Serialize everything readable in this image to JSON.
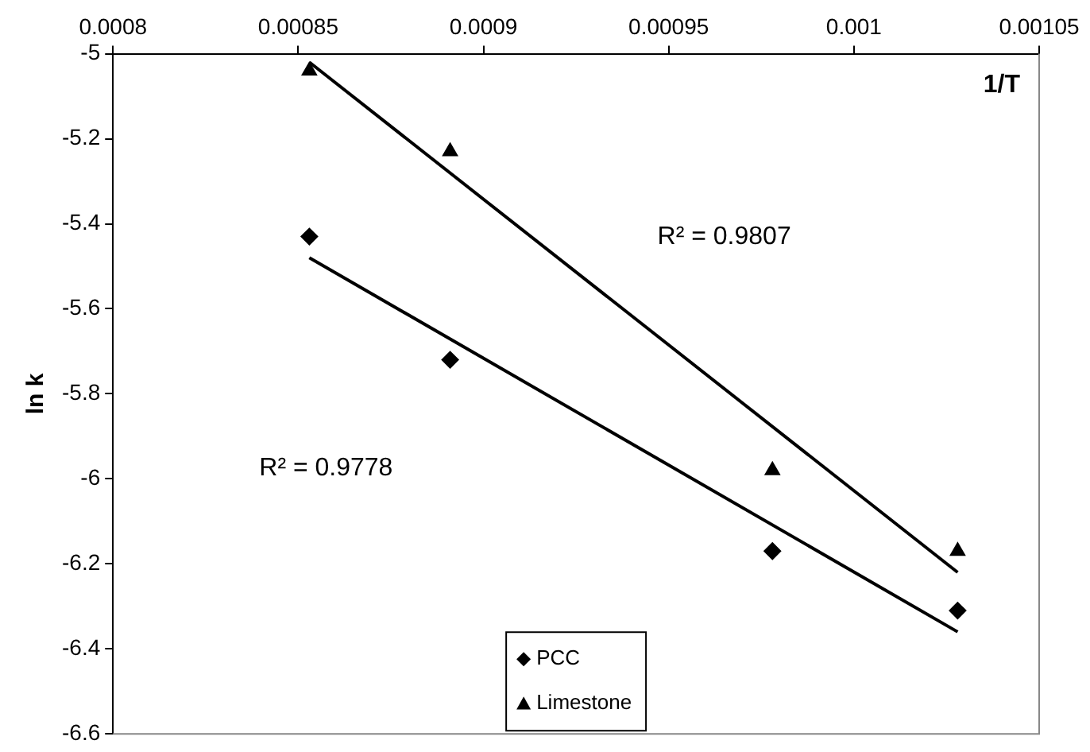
{
  "chart_data": {
    "type": "scatter",
    "xlabel": "1/T",
    "ylabel": "ln k",
    "xlim": [
      0.0008,
      0.00105
    ],
    "xticks": [
      0.0008,
      0.00085,
      0.0009,
      0.00095,
      0.001,
      0.00105
    ],
    "ylim": [
      -6.6,
      -5
    ],
    "yticks": [
      -6.6,
      -6.4,
      -6.2,
      -6,
      -5.8,
      -5.6,
      -5.4,
      -5.2,
      -5
    ],
    "grid": false,
    "legend": "bottom",
    "series": [
      {
        "name": "PCC",
        "color": "#000000",
        "marker": "diamond",
        "x": [
          0.000853,
          0.000891,
          0.000978,
          0.001028
        ],
        "values": [
          -5.43,
          -5.72,
          -6.17,
          -6.31
        ]
      },
      {
        "name": "Limestone",
        "color": "#000000",
        "marker": "triangle",
        "x": [
          0.000853,
          0.000891,
          0.000978,
          0.001028
        ],
        "values": [
          -5.04,
          -5.23,
          -5.98,
          -6.17
        ]
      },
      {
        "type": "line",
        "color": "#000000",
        "marker": "none",
        "line_style": "solid",
        "x": [
          0.000853,
          0.001028
        ],
        "values": [
          -5.48,
          -6.36
        ]
      },
      {
        "type": "line",
        "color": "#000000",
        "marker": "none",
        "line_style": "solid",
        "x": [
          0.000853,
          0.001028
        ],
        "values": [
          -5.02,
          -6.22
        ]
      }
    ],
    "annotations": [
      "R² = 0.9807",
      "R² = 0.9778"
    ]
  }
}
